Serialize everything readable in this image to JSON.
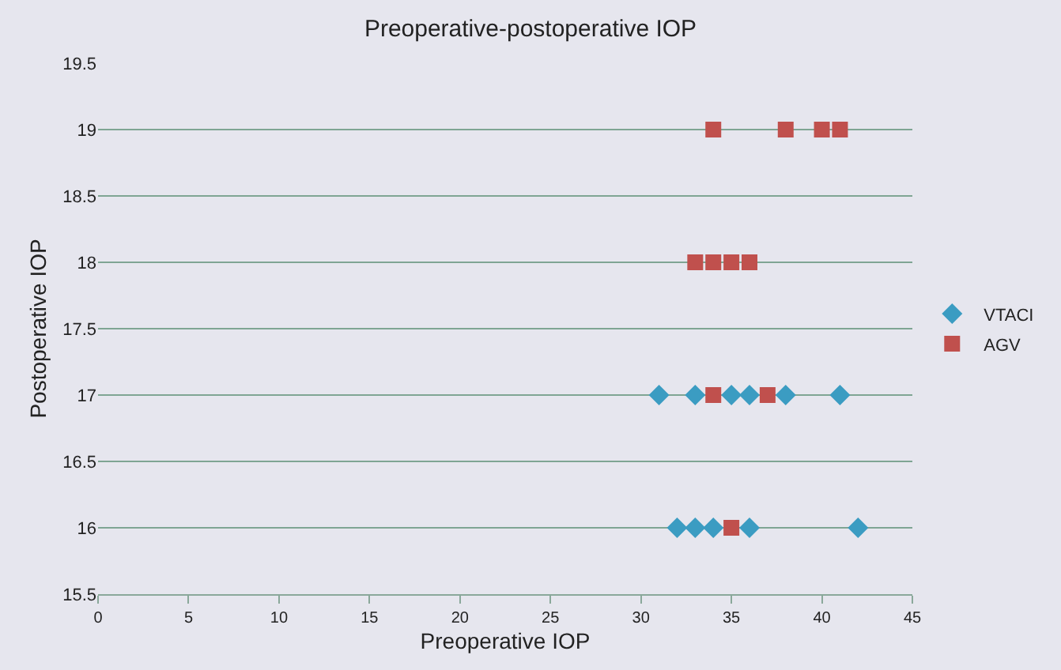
{
  "chart_data": {
    "type": "scatter",
    "title": "Preoperative-postoperative IOP",
    "xlabel": "Preoperative IOP",
    "ylabel": "Postoperative IOP",
    "series": [
      {
        "name": "VTACI",
        "color": "#3b9cc2",
        "marker": "diamond",
        "x": [
          31,
          33,
          35,
          36,
          38,
          41,
          32,
          33,
          34,
          36,
          42
        ],
        "values": [
          17,
          17,
          17,
          17,
          17,
          17,
          16,
          16,
          16,
          16,
          16
        ]
      },
      {
        "name": "AGV",
        "color": "#c0504d",
        "marker": "square",
        "x": [
          34,
          38,
          40,
          41,
          33,
          34,
          35,
          36,
          34,
          37,
          35
        ],
        "values": [
          19,
          19,
          19,
          19,
          18,
          18,
          18,
          18,
          17,
          17,
          16
        ]
      }
    ],
    "xlim": [
      0,
      45
    ],
    "xticks": [
      0,
      5,
      10,
      15,
      20,
      25,
      30,
      35,
      40,
      45
    ],
    "ylim": [
      15.5,
      19.5
    ],
    "yticks": [
      15.5,
      16,
      16.5,
      17,
      17.5,
      18,
      18.5,
      19,
      19.5
    ],
    "grid": "y",
    "legend": "right"
  }
}
